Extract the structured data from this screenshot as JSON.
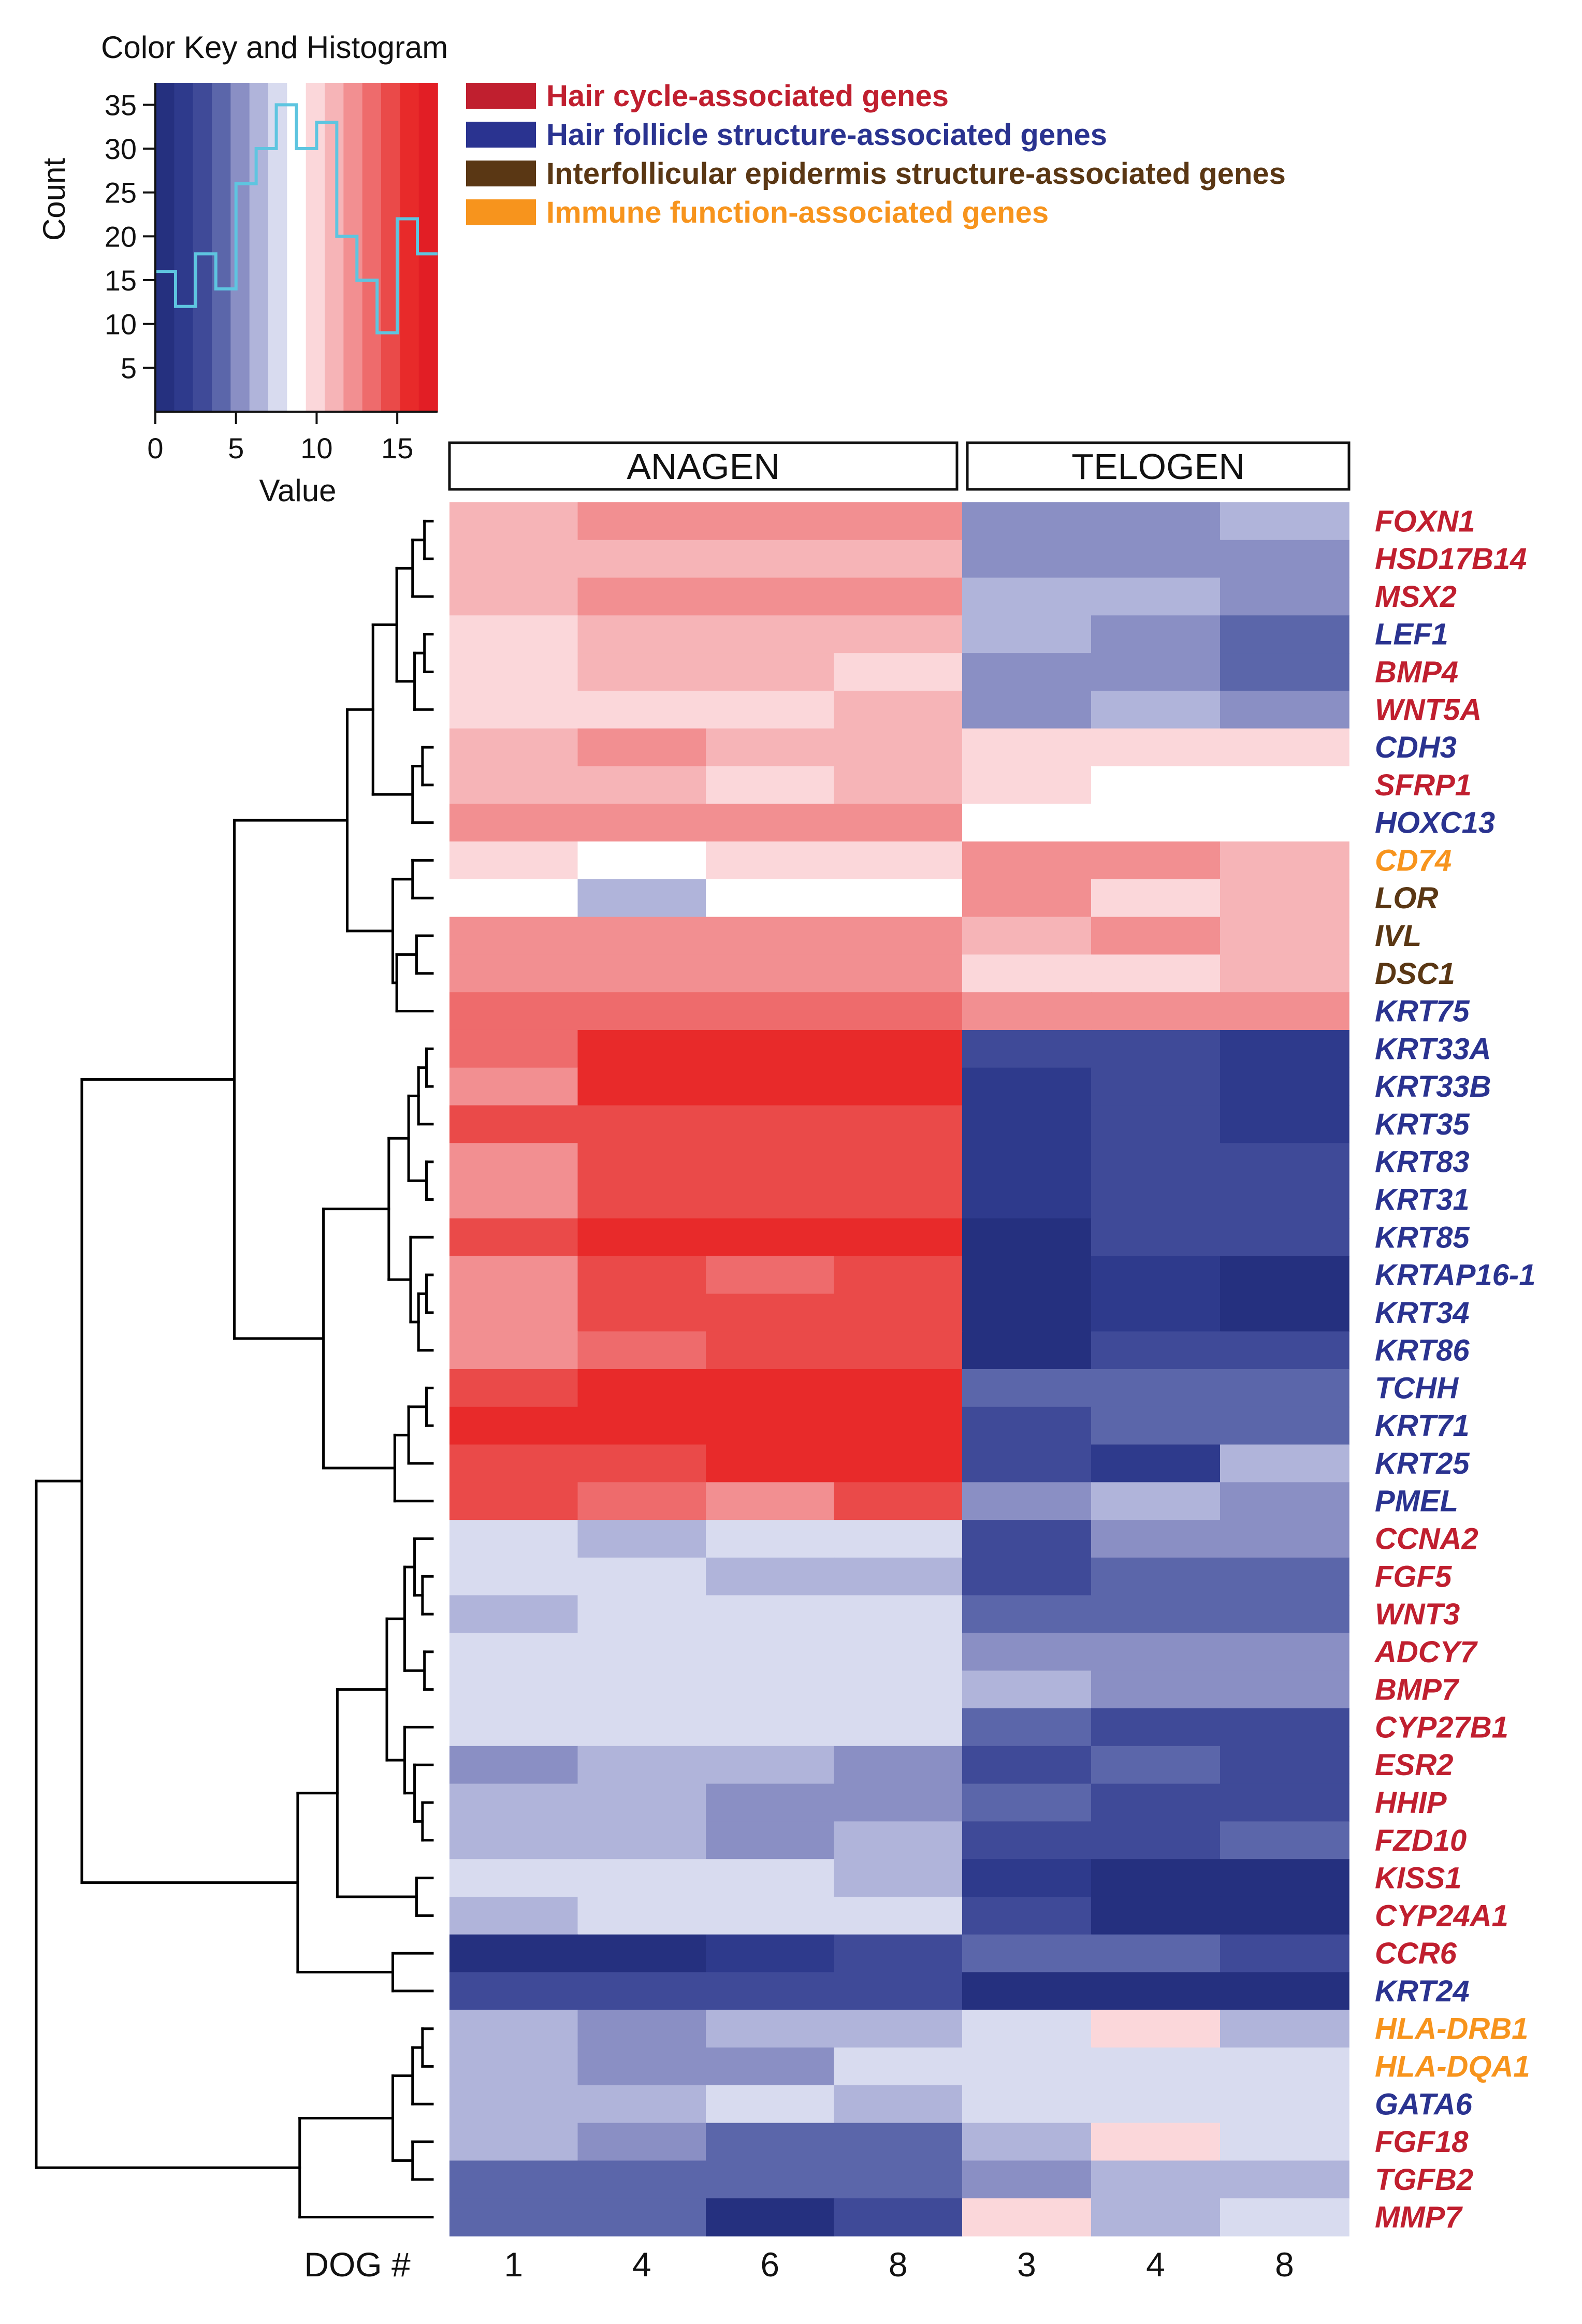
{
  "chart_data": [
    {
      "type": "histogram",
      "title": "Color Key and Histogram",
      "xlabel": "Value",
      "ylabel": "Count",
      "xlim": [
        0,
        17.5
      ],
      "ylim": [
        0,
        37.5
      ],
      "x_ticks": [
        0,
        5,
        10,
        15
      ],
      "y_ticks": [
        5,
        10,
        15,
        20,
        25,
        30,
        35
      ],
      "bin_edges": [
        0,
        1.25,
        2.5,
        3.75,
        5,
        6.25,
        7.5,
        8.75,
        10,
        11.25,
        12.5,
        13.75,
        15,
        16.25,
        17.5
      ],
      "counts": [
        16,
        12,
        18,
        14,
        26,
        30,
        35,
        30,
        33,
        20,
        15,
        9,
        22,
        18
      ],
      "color_scale": [
        "#25307f",
        "#2e3a8c",
        "#3f4a98",
        "#5b66aa",
        "#8a8fc4",
        "#b0b4da",
        "#d8dbef",
        "#ffffff",
        "#fbd7da",
        "#f6b4b7",
        "#f28f91",
        "#ee6b6c",
        "#ea4a49",
        "#e82a2a",
        "#e21e25"
      ],
      "histogram_color": "#5ec5e0"
    },
    {
      "type": "heatmap",
      "groups": [
        {
          "label": "ANAGEN",
          "columns": [
            "1",
            "4",
            "6",
            "8"
          ]
        },
        {
          "label": "TELOGEN",
          "columns": [
            "3",
            "4",
            "8"
          ]
        }
      ],
      "column_axis_label": "DOG #",
      "columns": [
        "1",
        "4",
        "6",
        "8",
        "3",
        "4",
        "8"
      ],
      "value_range": [
        0,
        17.5
      ],
      "rows": [
        {
          "gene": "FOXN1",
          "category": "hair_cycle",
          "values": [
            11,
            12,
            12,
            12,
            5,
            5,
            6
          ]
        },
        {
          "gene": "HSD17B14",
          "category": "hair_cycle",
          "values": [
            11,
            11,
            11,
            11,
            5,
            5,
            5
          ]
        },
        {
          "gene": "MSX2",
          "category": "hair_cycle",
          "values": [
            11,
            12,
            12,
            12,
            6,
            6,
            5
          ]
        },
        {
          "gene": "LEF1",
          "category": "follicle_structure",
          "values": [
            10,
            11,
            11,
            11,
            6,
            5,
            4
          ]
        },
        {
          "gene": "BMP4",
          "category": "hair_cycle",
          "values": [
            10,
            11,
            11,
            10,
            5,
            5,
            4
          ]
        },
        {
          "gene": "WNT5A",
          "category": "hair_cycle",
          "values": [
            10,
            10,
            10,
            11,
            5,
            6,
            5
          ]
        },
        {
          "gene": "CDH3",
          "category": "follicle_structure",
          "values": [
            11,
            12,
            11,
            11,
            10,
            10,
            10
          ]
        },
        {
          "gene": "SFRP1",
          "category": "hair_cycle",
          "values": [
            11,
            11,
            10,
            11,
            10,
            9,
            9
          ]
        },
        {
          "gene": "HOXC13",
          "category": "follicle_structure",
          "values": [
            12,
            12,
            12,
            12,
            9,
            9,
            9
          ]
        },
        {
          "gene": "CD74",
          "category": "immune",
          "values": [
            10,
            9,
            10,
            10,
            12,
            12,
            11
          ]
        },
        {
          "gene": "LOR",
          "category": "interfollicular",
          "values": [
            9,
            6,
            9,
            9,
            12,
            10,
            11
          ]
        },
        {
          "gene": "IVL",
          "category": "interfollicular",
          "values": [
            13,
            13,
            13,
            13,
            11,
            12,
            11
          ]
        },
        {
          "gene": "DSC1",
          "category": "interfollicular",
          "values": [
            12,
            13,
            13,
            13,
            10,
            10,
            11
          ]
        },
        {
          "gene": "KRT75",
          "category": "follicle_structure",
          "values": [
            14,
            14,
            14,
            14,
            12,
            13,
            13
          ]
        },
        {
          "gene": "KRT33A",
          "category": "follicle_structure",
          "values": [
            14,
            16,
            16,
            16,
            2,
            2,
            1
          ]
        },
        {
          "gene": "KRT33B",
          "category": "follicle_structure",
          "values": [
            13,
            16,
            16,
            16,
            1,
            2,
            1
          ]
        },
        {
          "gene": "KRT35",
          "category": "follicle_structure",
          "values": [
            15,
            15,
            15,
            15,
            1,
            2,
            1
          ]
        },
        {
          "gene": "KRT83",
          "category": "follicle_structure",
          "values": [
            13,
            15,
            15,
            15,
            1,
            2,
            2
          ]
        },
        {
          "gene": "KRT31",
          "category": "follicle_structure",
          "values": [
            13,
            15,
            15,
            15,
            1,
            2,
            2
          ]
        },
        {
          "gene": "KRT85",
          "category": "follicle_structure",
          "values": [
            15,
            16,
            16,
            16,
            0,
            3,
            3
          ]
        },
        {
          "gene": "KRTAP16-1",
          "category": "follicle_structure",
          "values": [
            13,
            15,
            14,
            15,
            0,
            1,
            0
          ]
        },
        {
          "gene": "KRT34",
          "category": "follicle_structure",
          "values": [
            12,
            15,
            15,
            15,
            0,
            1,
            0
          ]
        },
        {
          "gene": "KRT86",
          "category": "follicle_structure",
          "values": [
            13,
            14,
            15,
            15,
            0,
            2,
            2
          ]
        },
        {
          "gene": "TCHH",
          "category": "follicle_structure",
          "values": [
            15,
            16,
            16,
            16,
            4,
            4,
            4
          ]
        },
        {
          "gene": "KRT71",
          "category": "follicle_structure",
          "values": [
            16,
            16,
            16,
            16,
            3,
            4,
            4
          ]
        },
        {
          "gene": "KRT25",
          "category": "follicle_structure",
          "values": [
            15,
            15,
            16,
            16,
            2,
            1,
            6
          ]
        },
        {
          "gene": "PMEL",
          "category": "follicle_structure",
          "values": [
            15,
            14,
            12,
            15,
            5,
            6,
            5
          ]
        },
        {
          "gene": "CCNA2",
          "category": "hair_cycle",
          "values": [
            7,
            6,
            7,
            7,
            3,
            5,
            5
          ]
        },
        {
          "gene": "FGF5",
          "category": "hair_cycle",
          "values": [
            7,
            8,
            6,
            6,
            3,
            4,
            4
          ]
        },
        {
          "gene": "WNT3",
          "category": "hair_cycle",
          "values": [
            6,
            8,
            8,
            7,
            4,
            4,
            4
          ]
        },
        {
          "gene": "ADCY7",
          "category": "hair_cycle",
          "values": [
            7,
            8,
            7,
            7,
            5,
            5,
            5
          ]
        },
        {
          "gene": "BMP7",
          "category": "hair_cycle",
          "values": [
            7,
            7,
            7,
            7,
            6,
            5,
            5
          ]
        },
        {
          "gene": "CYP27B1",
          "category": "hair_cycle",
          "values": [
            8,
            8,
            7,
            8,
            4,
            3,
            3
          ]
        },
        {
          "gene": "ESR2",
          "category": "hair_cycle",
          "values": [
            5,
            6,
            6,
            5,
            3,
            4,
            3
          ]
        },
        {
          "gene": "HHIP",
          "category": "hair_cycle",
          "values": [
            6,
            6,
            5,
            5,
            4,
            3,
            2
          ]
        },
        {
          "gene": "FZD10",
          "category": "hair_cycle",
          "values": [
            6,
            6,
            5,
            6,
            3,
            3,
            4
          ]
        },
        {
          "gene": "KISS1",
          "category": "hair_cycle",
          "values": [
            8,
            7,
            7,
            6,
            1,
            0,
            0
          ]
        },
        {
          "gene": "CYP24A1",
          "category": "hair_cycle",
          "values": [
            6,
            7,
            7,
            7,
            2,
            0,
            0
          ]
        },
        {
          "gene": "CCR6",
          "category": "hair_cycle",
          "values": [
            0,
            0,
            1,
            2,
            4,
            4,
            2
          ]
        },
        {
          "gene": "KRT24",
          "category": "follicle_structure",
          "values": [
            2,
            2,
            3,
            2,
            0,
            0,
            0
          ]
        },
        {
          "gene": "HLA-DRB1",
          "category": "immune",
          "values": [
            6,
            5,
            6,
            6,
            8,
            10,
            6
          ]
        },
        {
          "gene": "HLA-DQA1",
          "category": "immune",
          "values": [
            6,
            5,
            5,
            7,
            8,
            8,
            7
          ]
        },
        {
          "gene": "GATA6",
          "category": "follicle_structure",
          "values": [
            6,
            6,
            7,
            6,
            8,
            8,
            8
          ]
        },
        {
          "gene": "FGF18",
          "category": "hair_cycle",
          "values": [
            6,
            5,
            4,
            4,
            6,
            10,
            8
          ]
        },
        {
          "gene": "TGFB2",
          "category": "hair_cycle",
          "values": [
            4,
            4,
            4,
            4,
            5,
            6,
            6
          ]
        },
        {
          "gene": "MMP7",
          "category": "hair_cycle",
          "values": [
            4,
            4,
            0,
            3,
            10,
            6,
            8
          ]
        }
      ]
    }
  ],
  "legend": [
    {
      "key": "hair_cycle",
      "label": "Hair cycle-associated genes",
      "color": "#c01f2f"
    },
    {
      "key": "follicle_structure",
      "label": "Hair follicle structure-associated genes",
      "color": "#2a3390"
    },
    {
      "key": "interfollicular",
      "label": "Interfollicular epidermis structure-associated genes",
      "color": "#5a3714"
    },
    {
      "key": "immune",
      "label": "Immune function-associated genes",
      "color": "#f7941d"
    }
  ],
  "dendrogram_color": "#000000"
}
